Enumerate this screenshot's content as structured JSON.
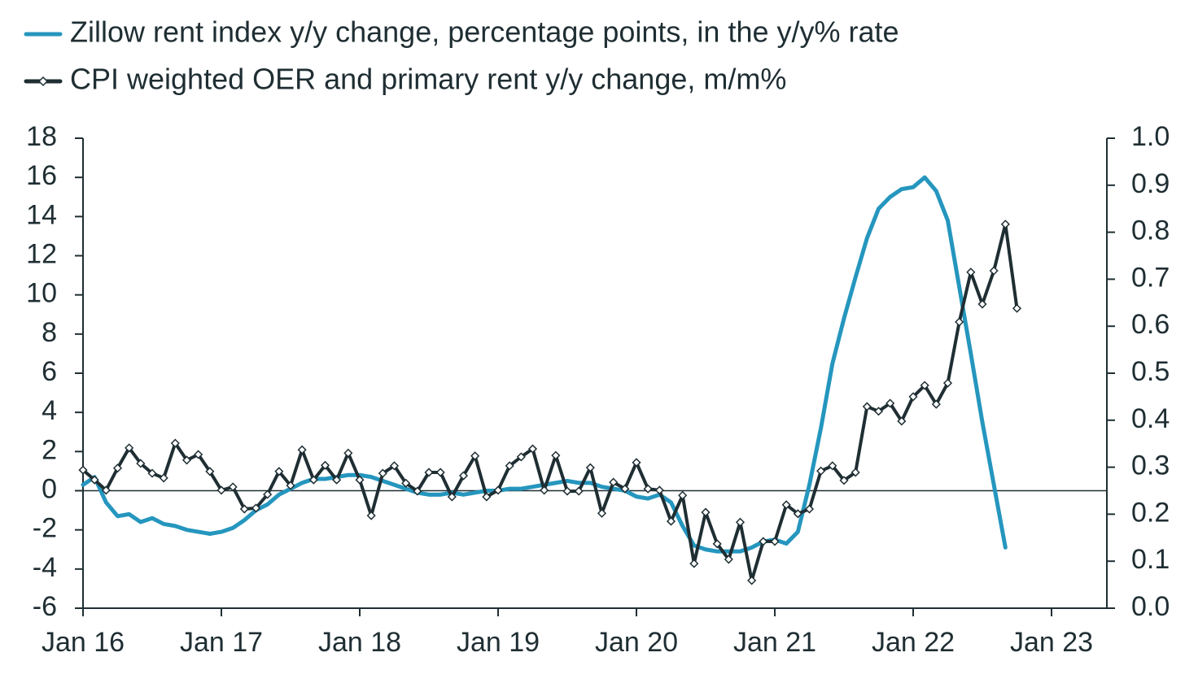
{
  "chart_data": {
    "type": "line",
    "categories": [
      "Jan 16",
      null,
      null,
      null,
      null,
      null,
      null,
      null,
      null,
      null,
      null,
      null,
      "Jan 17",
      null,
      null,
      null,
      null,
      null,
      null,
      null,
      null,
      null,
      null,
      null,
      "Jan 18",
      null,
      null,
      null,
      null,
      null,
      null,
      null,
      null,
      null,
      null,
      null,
      "Jan 19",
      null,
      null,
      null,
      null,
      null,
      null,
      null,
      null,
      null,
      null,
      null,
      "Jan 20",
      null,
      null,
      null,
      null,
      null,
      null,
      null,
      null,
      null,
      null,
      null,
      "Jan 21",
      null,
      null,
      null,
      null,
      null,
      null,
      null,
      null,
      null,
      null,
      null,
      "Jan 22",
      null,
      null,
      null,
      null,
      null,
      null,
      null,
      null,
      null,
      null,
      null,
      "Jan 23",
      null,
      null,
      null,
      null
    ],
    "series": [
      {
        "name": "Zillow rent index y/y change, percentage points, in the y/y% rate",
        "color": "#2596be",
        "axis": "y",
        "values": [
          0.3,
          0.7,
          -0.6,
          -1.3,
          -1.2,
          -1.6,
          -1.4,
          -1.7,
          -1.8,
          -2.0,
          -2.1,
          -2.2,
          -2.1,
          -1.9,
          -1.5,
          -1.0,
          -0.7,
          -0.2,
          0.1,
          0.4,
          0.6,
          0.6,
          0.7,
          0.8,
          0.8,
          0.7,
          0.5,
          0.3,
          0.1,
          -0.1,
          -0.2,
          -0.2,
          -0.1,
          -0.2,
          -0.1,
          0.0,
          0.0,
          0.1,
          0.1,
          0.2,
          0.3,
          0.4,
          0.5,
          0.4,
          0.4,
          0.2,
          0.1,
          0.0,
          -0.3,
          -0.4,
          -0.2,
          -0.6,
          -1.8,
          -2.8,
          -3.0,
          -3.1,
          -3.1,
          -3.1,
          -2.9,
          -2.6,
          -2.5,
          -2.7,
          -2.1,
          0.3,
          3.2,
          6.5,
          8.8,
          10.9,
          12.9,
          14.4,
          15.0,
          15.4,
          15.5,
          16.0,
          15.3,
          13.8,
          10.4,
          7.0,
          3.5,
          0.3,
          -2.9,
          null,
          null,
          null,
          null,
          null,
          null,
          null,
          null
        ]
      },
      {
        "name": "CPI weighted OER and primary rent y/y change, m/m%",
        "color": "#1f2e33",
        "axis": "y2",
        "marker": "diamond",
        "values": [
          0.294,
          0.273,
          0.251,
          0.298,
          0.341,
          0.308,
          0.287,
          0.277,
          0.351,
          0.315,
          0.327,
          0.291,
          0.251,
          0.258,
          0.211,
          0.213,
          0.242,
          0.291,
          0.261,
          0.337,
          0.273,
          0.304,
          0.273,
          0.33,
          0.273,
          0.197,
          0.287,
          0.303,
          0.266,
          0.249,
          0.289,
          0.289,
          0.237,
          0.282,
          0.324,
          0.237,
          0.251,
          0.303,
          0.322,
          0.339,
          0.251,
          0.325,
          0.249,
          0.249,
          0.299,
          0.202,
          0.268,
          0.254,
          0.31,
          0.254,
          0.251,
          0.185,
          0.24,
          0.095,
          0.204,
          0.137,
          0.104,
          0.183,
          0.059,
          0.142,
          0.142,
          0.22,
          0.201,
          0.211,
          0.292,
          0.303,
          0.272,
          0.289,
          0.429,
          0.419,
          0.436,
          0.398,
          0.45,
          0.474,
          0.434,
          0.479,
          0.609,
          0.715,
          0.647,
          0.718,
          0.817,
          0.638,
          null,
          null,
          null,
          null,
          null,
          null,
          null
        ]
      }
    ],
    "ylim": [
      -6,
      18
    ],
    "yticks": [
      -6,
      -4,
      -2,
      0,
      2,
      4,
      6,
      8,
      10,
      12,
      14,
      16,
      18
    ],
    "y2lim": [
      0,
      1
    ],
    "y2ticks": [
      {
        "value": 0,
        "label": "0.0"
      },
      0.1,
      0.2,
      0.3,
      0.4,
      0.5,
      0.6,
      0.7,
      0.8,
      0.9,
      {
        "value": 1,
        "label": "1.0"
      }
    ],
    "legend": "top-left",
    "grid": false
  }
}
